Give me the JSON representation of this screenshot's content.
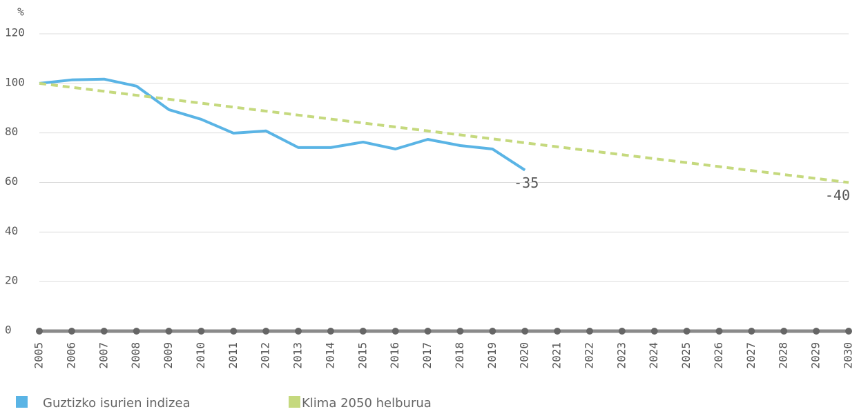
{
  "chart_data": {
    "type": "line",
    "y_label": "%",
    "categories": [
      "2005",
      "2006",
      "2007",
      "2008",
      "2009",
      "2010",
      "2011",
      "2012",
      "2013",
      "2014",
      "2015",
      "2016",
      "2017",
      "2018",
      "2019",
      "2020",
      "2021",
      "2022",
      "2023",
      "2024",
      "2025",
      "2026",
      "2027",
      "2028",
      "2029",
      "2030"
    ],
    "series": [
      {
        "name": "Guztizko isurien indizea",
        "color": "#5ab4e5",
        "style": "solid",
        "values": [
          100,
          101.4,
          101.7,
          98.9,
          89.4,
          85.5,
          79.9,
          80.8,
          74.1,
          74.1,
          76.3,
          73.5,
          77.4,
          74.9,
          73.5,
          65,
          null,
          null,
          null,
          null,
          null,
          null,
          null,
          null,
          null,
          null
        ]
      },
      {
        "name": "Klima 2050 helburua",
        "color": "#c5d97e",
        "style": "dashed",
        "values": [
          100,
          98.4,
          96.8,
          95.2,
          93.6,
          92,
          90.4,
          88.8,
          87.2,
          85.6,
          84,
          82.4,
          80.8,
          79.2,
          77.6,
          76,
          74.4,
          72.8,
          71.2,
          69.6,
          68,
          66.4,
          64.8,
          63.2,
          61.6,
          60
        ]
      }
    ],
    "annotations": [
      "-35",
      "-40"
    ],
    "ylim": [
      0,
      120
    ],
    "yticks": [
      0,
      20,
      40,
      60,
      80,
      100,
      120
    ],
    "grid": true
  }
}
